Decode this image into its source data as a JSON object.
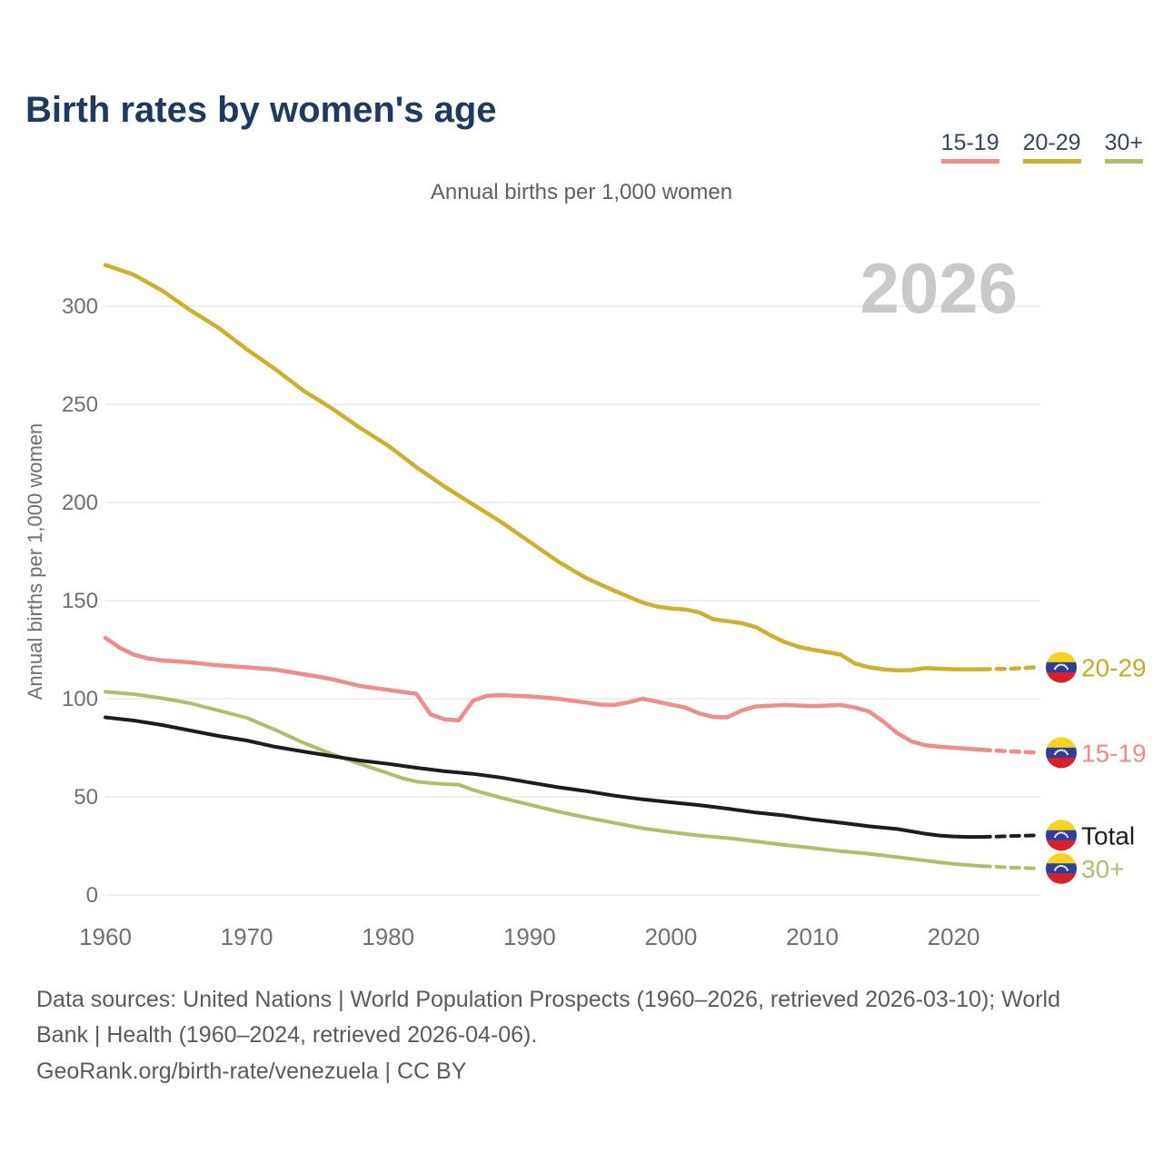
{
  "title": "Birth rates by women's age",
  "subtitle": "Annual births per 1,000 women",
  "watermark": "2026",
  "legend": [
    {
      "label": "15-19",
      "color": "#f28b8b"
    },
    {
      "label": "20-29",
      "color": "#ccb22a"
    },
    {
      "label": "30+",
      "color": "#a9c269"
    }
  ],
  "footer": {
    "line1": "Data sources: United Nations | World Population Prospects (1960–2026, retrieved 2026-03-10); World",
    "line2": "Bank | Health (1960–2024, retrieved 2026-04-06).",
    "line3": "GeoRank.org/birth-rate/venezuela | CC BY"
  },
  "chart_data": {
    "type": "line",
    "title": "Birth rates by women's age",
    "ylabel": "Annual births per 1,000 women",
    "xlabel": "",
    "xlim": [
      1960,
      2026
    ],
    "ylim": [
      0,
      300
    ],
    "yticks": [
      0,
      50,
      100,
      150,
      200,
      250,
      300
    ],
    "xticks": [
      1960,
      1970,
      1980,
      1990,
      2000,
      2010,
      2020
    ],
    "grid": "horizontal",
    "legend_position": "top-right",
    "dashed_from": 2022,
    "colors": {
      "grid": "#eaeaea",
      "axis_text": "#707070",
      "watermark": "#c9c9c9",
      "flag_yellow": "#f8d318",
      "flag_blue": "#2c3e9e",
      "flag_red": "#dc1f26",
      "flag_stars": "#ffffff"
    },
    "series": [
      {
        "name": "30+",
        "end_label": "30+",
        "color": "#a9c269",
        "label_color": "#a9c269",
        "width": 4,
        "points": [
          [
            1960,
            103.5
          ],
          [
            1962,
            102.3
          ],
          [
            1964,
            100.3
          ],
          [
            1966,
            97.7
          ],
          [
            1968,
            94
          ],
          [
            1970,
            90.3
          ],
          [
            1972,
            84.2
          ],
          [
            1974,
            77.6
          ],
          [
            1976,
            71.8
          ],
          [
            1978,
            66.8
          ],
          [
            1980,
            62
          ],
          [
            1981,
            59.5
          ],
          [
            1982,
            57.8
          ],
          [
            1983,
            57
          ],
          [
            1984,
            56.5
          ],
          [
            1985,
            56.2
          ],
          [
            1986,
            53.5
          ],
          [
            1988,
            49.5
          ],
          [
            1990,
            46
          ],
          [
            1992,
            42.5
          ],
          [
            1994,
            39.5
          ],
          [
            1996,
            36.7
          ],
          [
            1998,
            34
          ],
          [
            2000,
            32
          ],
          [
            2002,
            30.3
          ],
          [
            2004,
            29
          ],
          [
            2006,
            27.3
          ],
          [
            2008,
            25.5
          ],
          [
            2010,
            24
          ],
          [
            2012,
            22.3
          ],
          [
            2014,
            21
          ],
          [
            2016,
            19.3
          ],
          [
            2018,
            17.5
          ],
          [
            2020,
            15.8
          ],
          [
            2022,
            14.7
          ],
          [
            2024,
            14
          ],
          [
            2026,
            13.5
          ]
        ]
      },
      {
        "name": "Total",
        "end_label": "Total",
        "color": "#1d1d1d",
        "label_color": "#1d1d1d",
        "width": 4,
        "points": [
          [
            1960,
            90.5
          ],
          [
            1962,
            88.9
          ],
          [
            1964,
            86.6
          ],
          [
            1966,
            83.8
          ],
          [
            1968,
            81
          ],
          [
            1970,
            78.7
          ],
          [
            1972,
            75.5
          ],
          [
            1974,
            73.1
          ],
          [
            1976,
            70.8
          ],
          [
            1978,
            68.5
          ],
          [
            1980,
            66.8
          ],
          [
            1982,
            64.8
          ],
          [
            1984,
            63
          ],
          [
            1986,
            61.7
          ],
          [
            1988,
            59.8
          ],
          [
            1990,
            57.3
          ],
          [
            1992,
            54.9
          ],
          [
            1994,
            52.9
          ],
          [
            1996,
            50.6
          ],
          [
            1998,
            48.7
          ],
          [
            2000,
            47.2
          ],
          [
            2002,
            45.8
          ],
          [
            2004,
            44
          ],
          [
            2006,
            42
          ],
          [
            2008,
            40.5
          ],
          [
            2010,
            38.5
          ],
          [
            2012,
            36.8
          ],
          [
            2014,
            35
          ],
          [
            2016,
            33.6
          ],
          [
            2017,
            32.4
          ],
          [
            2018,
            31.2
          ],
          [
            2019,
            30.3
          ],
          [
            2020,
            29.8
          ],
          [
            2021,
            29.6
          ],
          [
            2022,
            29.6
          ],
          [
            2023,
            29.7
          ],
          [
            2024,
            30
          ],
          [
            2026,
            30.4
          ]
        ]
      },
      {
        "name": "15-19",
        "end_label": "15-19",
        "color": "#f28b8b",
        "label_color": "#f28b8b",
        "width": 4.5,
        "points": [
          [
            1960,
            131
          ],
          [
            1961,
            126
          ],
          [
            1962,
            122.5
          ],
          [
            1963,
            120.5
          ],
          [
            1964,
            119.5
          ],
          [
            1966,
            118.5
          ],
          [
            1968,
            117
          ],
          [
            1970,
            116
          ],
          [
            1972,
            114.8
          ],
          [
            1974,
            112.5
          ],
          [
            1976,
            110
          ],
          [
            1978,
            106.5
          ],
          [
            1980,
            104.5
          ],
          [
            1982,
            102.5
          ],
          [
            1983,
            92
          ],
          [
            1984,
            89.5
          ],
          [
            1985,
            89
          ],
          [
            1986,
            99
          ],
          [
            1987,
            101.5
          ],
          [
            1988,
            101.8
          ],
          [
            1990,
            101.2
          ],
          [
            1992,
            100
          ],
          [
            1994,
            98
          ],
          [
            1995,
            97
          ],
          [
            1996,
            96.8
          ],
          [
            1997,
            98.2
          ],
          [
            1998,
            100
          ],
          [
            1999,
            98.5
          ],
          [
            2000,
            97
          ],
          [
            2001,
            95.5
          ],
          [
            2002,
            92.5
          ],
          [
            2003,
            90.7
          ],
          [
            2004,
            90.5
          ],
          [
            2005,
            94
          ],
          [
            2006,
            96
          ],
          [
            2008,
            96.8
          ],
          [
            2010,
            96.2
          ],
          [
            2012,
            96.8
          ],
          [
            2013,
            95.5
          ],
          [
            2014,
            93.5
          ],
          [
            2015,
            88.5
          ],
          [
            2016,
            82.5
          ],
          [
            2017,
            78.3
          ],
          [
            2018,
            76.3
          ],
          [
            2019,
            75.5
          ],
          [
            2020,
            75
          ],
          [
            2022,
            74
          ],
          [
            2024,
            73.2
          ],
          [
            2026,
            72.5
          ]
        ]
      },
      {
        "name": "20-29",
        "end_label": "20-29",
        "color": "#ccb22a",
        "label_color": "#c5ac25",
        "width": 4.5,
        "points": [
          [
            1960,
            321
          ],
          [
            1962,
            316
          ],
          [
            1964,
            308
          ],
          [
            1966,
            298
          ],
          [
            1968,
            289
          ],
          [
            1970,
            278
          ],
          [
            1972,
            268
          ],
          [
            1974,
            257
          ],
          [
            1976,
            248
          ],
          [
            1978,
            238
          ],
          [
            1980,
            229
          ],
          [
            1982,
            218
          ],
          [
            1984,
            208
          ],
          [
            1986,
            199
          ],
          [
            1988,
            190
          ],
          [
            1990,
            180
          ],
          [
            1992,
            170
          ],
          [
            1994,
            161.5
          ],
          [
            1996,
            155
          ],
          [
            1998,
            149
          ],
          [
            1999,
            147
          ],
          [
            2000,
            146
          ],
          [
            2001,
            145.5
          ],
          [
            2002,
            144
          ],
          [
            2003,
            140.5
          ],
          [
            2004,
            139.5
          ],
          [
            2005,
            138.5
          ],
          [
            2006,
            136.5
          ],
          [
            2007,
            132.5
          ],
          [
            2008,
            129
          ],
          [
            2009,
            126.5
          ],
          [
            2010,
            125
          ],
          [
            2012,
            122.5
          ],
          [
            2013,
            118
          ],
          [
            2014,
            116
          ],
          [
            2015,
            115
          ],
          [
            2016,
            114.5
          ],
          [
            2017,
            114.6
          ],
          [
            2018,
            115.6
          ],
          [
            2019,
            115.3
          ],
          [
            2020,
            115
          ],
          [
            2022,
            115
          ],
          [
            2024,
            115.3
          ],
          [
            2026,
            116
          ]
        ]
      }
    ]
  }
}
